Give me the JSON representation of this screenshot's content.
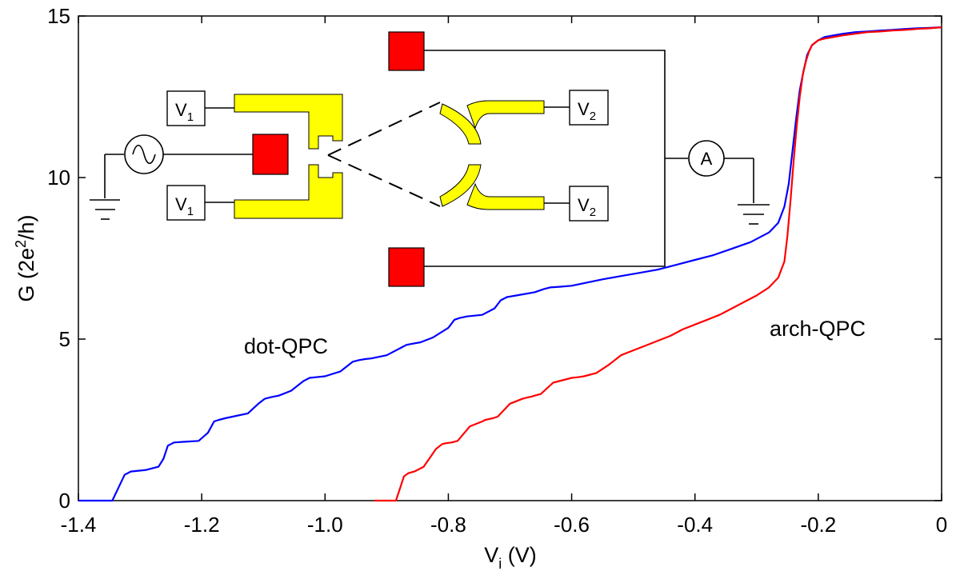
{
  "chart_data": {
    "type": "line",
    "xlabel": {
      "main": "V",
      "sub": "i",
      "unit": " (V)"
    },
    "ylabel": {
      "pre": "G (2e",
      "sup": "2",
      "post": "/h)"
    },
    "xlim": [
      -1.4,
      0
    ],
    "ylim": [
      0,
      15
    ],
    "xticks": [
      -1.4,
      -1.2,
      -1.0,
      -0.8,
      -0.6,
      -0.4,
      -0.2,
      0
    ],
    "xtick_labels": [
      "-1.4",
      "-1.2",
      "-1.0",
      "-0.8",
      "-0.6",
      "-0.4",
      "-0.2",
      "0"
    ],
    "yticks": [
      0,
      5,
      10,
      15
    ],
    "ytick_labels": [
      "0",
      "5",
      "10",
      "15"
    ],
    "grid": false,
    "series": [
      {
        "color": "#0000ff",
        "x": [
          -1.4,
          -1.345,
          -1.335,
          -1.325,
          -1.315,
          -1.29,
          -1.27,
          -1.262,
          -1.255,
          -1.245,
          -1.23,
          -1.205,
          -1.19,
          -1.18,
          -1.172,
          -1.162,
          -1.15,
          -1.125,
          -1.108,
          -1.098,
          -1.088,
          -1.075,
          -1.055,
          -1.035,
          -1.025,
          -1.015,
          -1.0,
          -0.975,
          -0.955,
          -0.945,
          -0.935,
          -0.925,
          -0.9,
          -0.875,
          -0.868,
          -0.86,
          -0.845,
          -0.825,
          -0.8,
          -0.79,
          -0.782,
          -0.77,
          -0.745,
          -0.725,
          -0.715,
          -0.705,
          -0.69,
          -0.66,
          -0.645,
          -0.635,
          -0.62,
          -0.6,
          -0.575,
          -0.55,
          -0.52,
          -0.49,
          -0.46,
          -0.43,
          -0.4,
          -0.37,
          -0.34,
          -0.31,
          -0.28,
          -0.265,
          -0.255,
          -0.248,
          -0.242,
          -0.236,
          -0.23,
          -0.224,
          -0.218,
          -0.21,
          -0.2,
          -0.19,
          -0.175,
          -0.16,
          -0.14,
          -0.12,
          -0.1,
          -0.08,
          -0.06,
          -0.04,
          -0.02,
          0.0
        ],
        "y": [
          0.0,
          0.0,
          0.4,
          0.8,
          0.9,
          0.95,
          1.05,
          1.3,
          1.7,
          1.8,
          1.82,
          1.85,
          2.1,
          2.45,
          2.5,
          2.55,
          2.6,
          2.7,
          3.0,
          3.15,
          3.2,
          3.25,
          3.4,
          3.7,
          3.8,
          3.82,
          3.85,
          4.0,
          4.3,
          4.35,
          4.38,
          4.4,
          4.5,
          4.75,
          4.82,
          4.85,
          4.9,
          5.05,
          5.35,
          5.6,
          5.65,
          5.7,
          5.75,
          5.95,
          6.2,
          6.3,
          6.35,
          6.45,
          6.55,
          6.6,
          6.62,
          6.65,
          6.75,
          6.85,
          6.95,
          7.05,
          7.15,
          7.3,
          7.45,
          7.6,
          7.8,
          8.0,
          8.3,
          8.6,
          9.1,
          9.8,
          10.8,
          11.8,
          12.7,
          13.3,
          13.8,
          14.1,
          14.25,
          14.35,
          14.4,
          14.45,
          14.5,
          14.52,
          14.55,
          14.57,
          14.6,
          14.62,
          14.63,
          14.65
        ]
      },
      {
        "color": "#ff0000",
        "x": [
          -0.92,
          -0.885,
          -0.878,
          -0.872,
          -0.865,
          -0.855,
          -0.84,
          -0.82,
          -0.81,
          -0.803,
          -0.795,
          -0.785,
          -0.765,
          -0.745,
          -0.74,
          -0.735,
          -0.728,
          -0.72,
          -0.7,
          -0.68,
          -0.67,
          -0.665,
          -0.66,
          -0.65,
          -0.63,
          -0.61,
          -0.6,
          -0.59,
          -0.58,
          -0.56,
          -0.54,
          -0.52,
          -0.5,
          -0.48,
          -0.46,
          -0.44,
          -0.42,
          -0.4,
          -0.38,
          -0.36,
          -0.34,
          -0.32,
          -0.3,
          -0.28,
          -0.265,
          -0.255,
          -0.25,
          -0.245,
          -0.24,
          -0.235,
          -0.23,
          -0.225,
          -0.22,
          -0.215,
          -0.21,
          -0.2,
          -0.19,
          -0.175,
          -0.16,
          -0.14,
          -0.12,
          -0.1,
          -0.08,
          -0.06,
          -0.04,
          -0.02,
          0.0
        ],
        "y": [
          0.0,
          0.0,
          0.4,
          0.75,
          0.85,
          0.9,
          1.05,
          1.6,
          1.75,
          1.78,
          1.8,
          1.85,
          2.3,
          2.45,
          2.5,
          2.52,
          2.55,
          2.6,
          3.0,
          3.15,
          3.2,
          3.22,
          3.25,
          3.3,
          3.65,
          3.75,
          3.8,
          3.82,
          3.85,
          3.95,
          4.2,
          4.5,
          4.65,
          4.8,
          4.95,
          5.1,
          5.3,
          5.45,
          5.6,
          5.75,
          5.95,
          6.15,
          6.35,
          6.6,
          6.9,
          7.4,
          8.2,
          9.3,
          10.5,
          11.6,
          12.5,
          13.2,
          13.6,
          13.9,
          14.1,
          14.25,
          14.3,
          14.35,
          14.4,
          14.45,
          14.5,
          14.52,
          14.55,
          14.57,
          14.6,
          14.62,
          14.65
        ]
      }
    ],
    "annotations": [
      "dot-QPC",
      "arch-QPC"
    ]
  },
  "inset": {
    "v1_labels": {
      "main": "V",
      "sub": "1"
    },
    "v2_labels": {
      "main": "V",
      "sub": "2"
    },
    "ammeter_label": "A",
    "gate_color": "#ffff00",
    "contact_color": "#ff0000"
  }
}
